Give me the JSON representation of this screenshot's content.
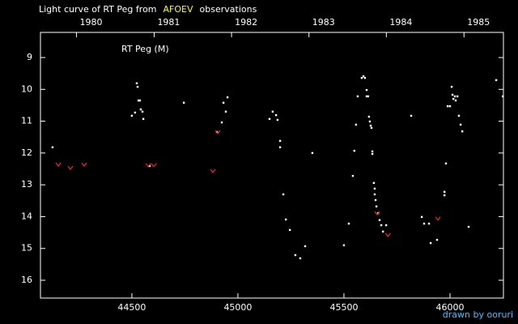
{
  "chart_data": {
    "type": "scatter",
    "title_parts": [
      {
        "text": "Light curve of RT Peg from",
        "color": "#ffffff"
      },
      {
        "text": "AFOEV",
        "color": "#ffff00"
      },
      {
        "text": "observations",
        "color": "#ffffff"
      }
    ],
    "annotation": "RT Peg (M)",
    "credit": "drawn by ooruri",
    "xlim": [
      44069,
      46252
    ],
    "ylim": [
      16.56,
      8.21
    ],
    "xticks": [
      44500,
      45000,
      45500,
      46000
    ],
    "yticks": [
      9,
      10,
      11,
      12,
      13,
      14,
      15,
      16
    ],
    "top_ticks": [
      {
        "value": 44239,
        "label": "1980"
      },
      {
        "value": 44605,
        "label": "1981"
      },
      {
        "value": 44970,
        "label": "1982"
      },
      {
        "value": 45335,
        "label": "1983"
      },
      {
        "value": 45700,
        "label": "1984"
      },
      {
        "value": 46066,
        "label": "1985"
      }
    ],
    "series": [
      {
        "color": "#ffffff",
        "marker": "dot",
        "x": [
          44126,
          44500,
          44515,
          44523,
          44527,
          44531,
          44538,
          44542,
          44550,
          44554,
          44584,
          44745,
          44901,
          44924,
          44932,
          44943,
          44951,
          45149,
          45164,
          45180,
          45187,
          45199,
          45199,
          45214,
          45226,
          45245,
          45271,
          45294,
          45317,
          45351,
          45500,
          45523,
          45542,
          45549,
          45557,
          45565,
          45584,
          45592,
          45599,
          45607,
          45607,
          45614,
          45618,
          45622,
          45626,
          45630,
          45634,
          45634,
          45641,
          45645,
          45645,
          45649,
          45653,
          45661,
          45668,
          45676,
          45684,
          45699,
          45817,
          45867,
          45878,
          45901,
          45909,
          45939,
          45974,
          45974,
          45981,
          45989,
          46000,
          46008,
          46012,
          46016,
          46023,
          46027,
          46035,
          46042,
          46050,
          46058,
          46088,
          46218,
          46249
        ],
        "values": [
          11.82,
          10.83,
          10.73,
          9.81,
          9.92,
          10.35,
          10.35,
          10.63,
          10.7,
          10.93,
          12.41,
          10.42,
          11.34,
          11.04,
          10.42,
          10.7,
          10.25,
          10.93,
          10.7,
          10.81,
          10.96,
          11.62,
          11.82,
          13.3,
          14.09,
          14.42,
          15.21,
          15.31,
          14.93,
          12.0,
          14.9,
          14.22,
          12.72,
          11.93,
          11.11,
          10.22,
          9.64,
          9.59,
          9.64,
          10.02,
          10.22,
          10.22,
          10.86,
          11.01,
          11.14,
          11.21,
          11.95,
          12.03,
          12.94,
          13.12,
          13.3,
          13.48,
          13.68,
          13.89,
          14.11,
          14.27,
          14.47,
          14.27,
          10.83,
          14.01,
          14.22,
          14.22,
          14.83,
          14.73,
          13.22,
          13.33,
          12.33,
          10.53,
          10.53,
          9.92,
          10.17,
          10.3,
          10.22,
          10.35,
          10.22,
          10.83,
          11.11,
          11.32,
          14.32,
          9.71,
          10.22
        ]
      },
      {
        "color": "#ff2020",
        "marker": "v",
        "x": [
          44153,
          44210,
          44275,
          44577,
          44603,
          44882,
          44905,
          45657,
          45707,
          45943
        ],
        "values": [
          12.36,
          12.46,
          12.36,
          12.38,
          12.38,
          12.56,
          11.34,
          13.89,
          14.57,
          14.06
        ]
      }
    ]
  }
}
